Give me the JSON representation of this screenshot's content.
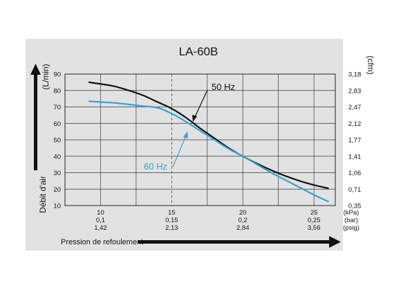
{
  "chart_data": {
    "type": "line",
    "title": "LA-60B",
    "ylabel": "Débit d'air",
    "ylabel_unit_left": "(L/min)",
    "ylabel_unit_right": "(cfm)",
    "xlabel": "Pression de refoulement",
    "ylim": [
      10,
      90
    ],
    "xlim": [
      7.5,
      26.5
    ],
    "grid": true,
    "y_ticks_left": [
      "90",
      "80",
      "70",
      "60",
      "50",
      "40",
      "30",
      "20",
      "10"
    ],
    "y_ticks_right": [
      "3,18",
      "2,83",
      "2,47",
      "2,12",
      "1,77",
      "1,41",
      "1,06",
      "0,71",
      "0,35"
    ],
    "x_ticks": [
      {
        "kpa": "10",
        "bar": "0,1",
        "psig": "1,42"
      },
      {
        "kpa": "15",
        "bar": "0,15",
        "psig": "2,13"
      },
      {
        "kpa": "20",
        "bar": "0,2",
        "psig": "2,84"
      },
      {
        "kpa": "25",
        "bar": "0,25",
        "psig": "3,56"
      }
    ],
    "x_unit_labels": [
      "(kPa)",
      "(bar)",
      "(psig)"
    ],
    "series": [
      {
        "name": "50 Hz",
        "color": "#111111",
        "x": [
          9.2,
          10,
          11,
          12,
          13,
          14,
          15,
          16,
          17,
          18,
          19,
          20,
          21,
          22,
          23,
          24,
          25,
          26
        ],
        "y": [
          85,
          84,
          82.5,
          80,
          77,
          73,
          69,
          63.5,
          57,
          51,
          45,
          40,
          35.5,
          31.5,
          28,
          25,
          22.5,
          20.5
        ]
      },
      {
        "name": "60 Hz",
        "color": "#2fa4d8",
        "x": [
          9.2,
          10,
          11,
          12,
          13,
          14,
          15,
          16,
          17,
          18,
          19,
          20,
          21,
          22,
          23,
          24,
          25,
          26
        ],
        "y": [
          73.5,
          73,
          72.5,
          71.5,
          70.5,
          69.5,
          66,
          61,
          55.5,
          50,
          44.5,
          40,
          35,
          30,
          25.5,
          21,
          16.5,
          12.5
        ]
      }
    ]
  }
}
